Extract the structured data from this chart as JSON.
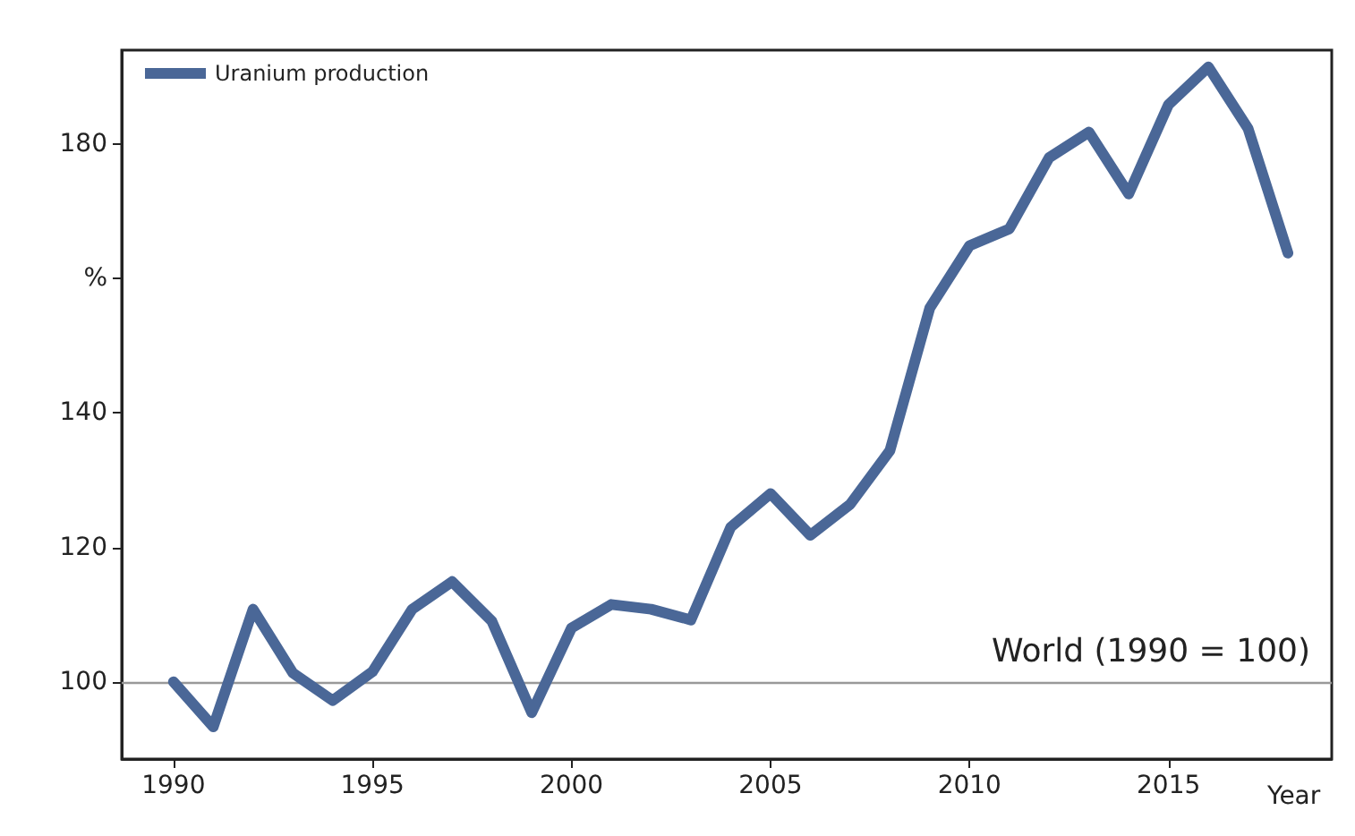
{
  "chart_data": {
    "type": "line",
    "xlabel": "Year",
    "x": [
      1990,
      1991,
      1992,
      1993,
      1994,
      1995,
      1996,
      1997,
      1998,
      1999,
      2000,
      2001,
      2002,
      2003,
      2004,
      2005,
      2006,
      2007,
      2008,
      2009,
      2010,
      2011,
      2012,
      2013,
      2014,
      2015,
      2016,
      2017,
      2018
    ],
    "series": [
      {
        "name": "Uranium production",
        "color": "#4a6797",
        "values": [
          100,
          93.3,
          110.8,
          101.3,
          97.2,
          101.5,
          110.8,
          114.9,
          109,
          95.4,
          108,
          111.5,
          110.8,
          109.2,
          123,
          128,
          121.8,
          126.4,
          134.4,
          155.6,
          164.9,
          167.4,
          178,
          181.8,
          172.6,
          185.9,
          191.5,
          182.3,
          163.8
        ]
      }
    ],
    "xlim": [
      1988.7,
      2019.1
    ],
    "xticks": [
      1990,
      1995,
      2000,
      2005,
      2010,
      2015
    ],
    "ylim": [
      88.5,
      194
    ],
    "yticks": [
      100,
      120,
      140,
      {
        "value": 160,
        "label": "%"
      },
      180
    ],
    "ref_lines": [
      {
        "axis": "y",
        "value": 100,
        "label": "World (1990 = 100)",
        "color": "#999999"
      }
    ],
    "legend": "top left",
    "grid": false,
    "marker": "none",
    "line_style": "solid"
  }
}
